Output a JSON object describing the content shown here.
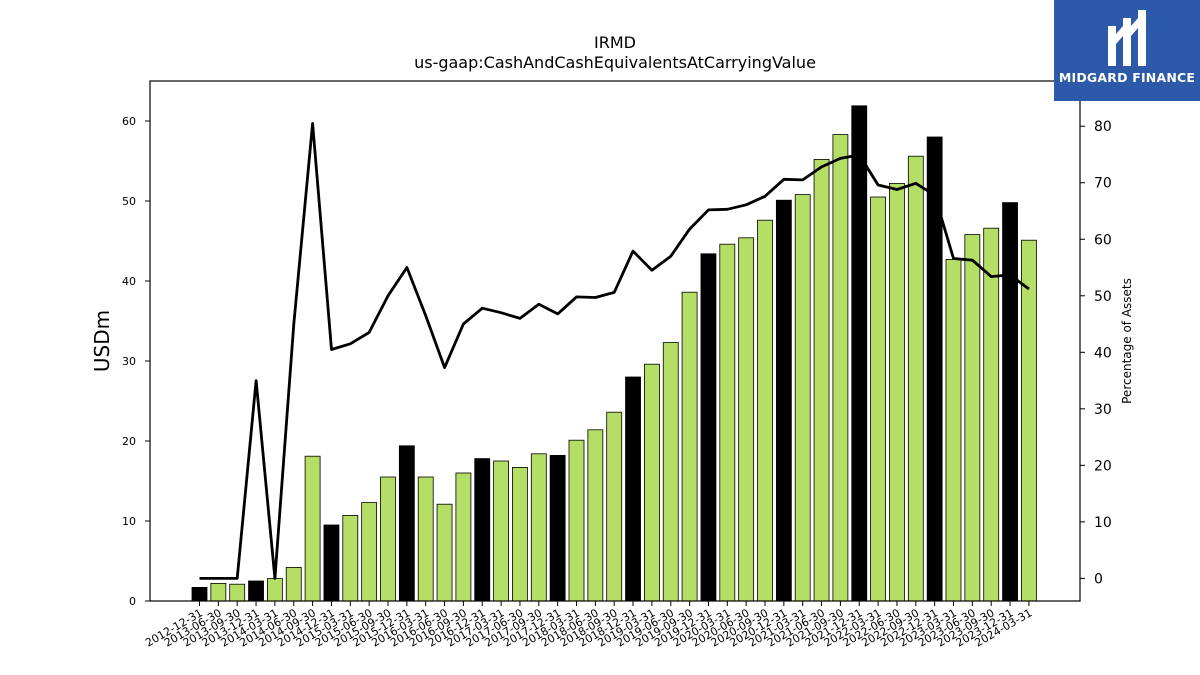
{
  "chart_data": {
    "type": "bar",
    "title": "IRMD",
    "subtitle": "us-gaap:CashAndCashEquivalentsAtCarryingValue",
    "ylabel": "USDm",
    "y2label": "Percentage of Assets",
    "ylim": [
      0,
      65
    ],
    "y2lim": [
      -4,
      88
    ],
    "yticks": [
      0,
      10,
      20,
      30,
      40,
      50,
      60
    ],
    "y2ticks": [
      0,
      10,
      20,
      30,
      40,
      50,
      60,
      70,
      80
    ],
    "categories": [
      "2012-12-31",
      "2013-06-30",
      "2013-09-30",
      "2013-12-31",
      "2014-03-31",
      "2014-06-30",
      "2014-09-30",
      "2014-12-31",
      "2015-03-31",
      "2015-06-30",
      "2015-09-30",
      "2015-12-31",
      "2016-03-31",
      "2016-06-30",
      "2016-09-30",
      "2016-12-31",
      "2017-03-31",
      "2017-06-30",
      "2017-09-30",
      "2017-12-31",
      "2018-03-31",
      "2018-06-30",
      "2018-09-30",
      "2018-12-31",
      "2019-03-31",
      "2019-06-30",
      "2019-09-30",
      "2019-12-31",
      "2020-03-31",
      "2020-06-30",
      "2020-09-30",
      "2020-12-31",
      "2021-03-31",
      "2021-06-30",
      "2021-09-30",
      "2021-12-31",
      "2022-03-31",
      "2022-06-30",
      "2022-09-30",
      "2022-12-31",
      "2023-03-31",
      "2023-06-30",
      "2023-09-30",
      "2023-12-31",
      "2024-03-31"
    ],
    "series": [
      {
        "type": "bar",
        "axis": "left",
        "values": [
          1.7,
          2.2,
          2.1,
          2.5,
          2.8,
          4.2,
          18.1,
          9.5,
          10.7,
          12.3,
          15.5,
          19.4,
          15.5,
          12.1,
          16.0,
          17.8,
          17.5,
          16.7,
          18.4,
          18.2,
          20.1,
          21.4,
          23.6,
          28.0,
          29.6,
          32.3,
          38.6,
          43.4,
          44.6,
          45.4,
          47.6,
          50.1,
          50.8,
          55.2,
          58.3,
          61.9,
          50.5,
          52.2,
          55.6,
          58.0,
          42.7,
          45.8,
          46.6,
          49.8,
          45.1
        ],
        "year_end": [
          true,
          false,
          false,
          true,
          false,
          false,
          false,
          true,
          false,
          false,
          false,
          true,
          false,
          false,
          false,
          true,
          false,
          false,
          false,
          true,
          false,
          false,
          false,
          true,
          false,
          false,
          false,
          true,
          false,
          false,
          false,
          true,
          false,
          false,
          false,
          true,
          false,
          false,
          false,
          true,
          false,
          false,
          false,
          true,
          false
        ]
      },
      {
        "type": "line",
        "axis": "right",
        "values": [
          0.0,
          0.0,
          0.0,
          35.0,
          0.0,
          45.0,
          80.5,
          40.5,
          41.5,
          43.5,
          50.0,
          55.0,
          46.5,
          37.3,
          45.0,
          47.8,
          47.0,
          46.0,
          48.5,
          46.8,
          49.8,
          49.7,
          50.6,
          57.9,
          54.5,
          57.0,
          61.8,
          65.2,
          65.3,
          66.1,
          67.6,
          70.6,
          70.5,
          72.8,
          74.3,
          74.9,
          69.6,
          68.8,
          69.9,
          67.8,
          56.6,
          56.3,
          53.4,
          53.7,
          51.2
        ]
      }
    ],
    "colors": {
      "bar": "#b5de67",
      "bar_highlight": "#000000",
      "line": "#000000",
      "bar_edge": "#000000"
    },
    "grid": false,
    "legend": "none"
  },
  "brand": {
    "name": "MIDGARD FINANCE",
    "icon": "midgard-logo-icon",
    "background": "#2d5aa8"
  }
}
